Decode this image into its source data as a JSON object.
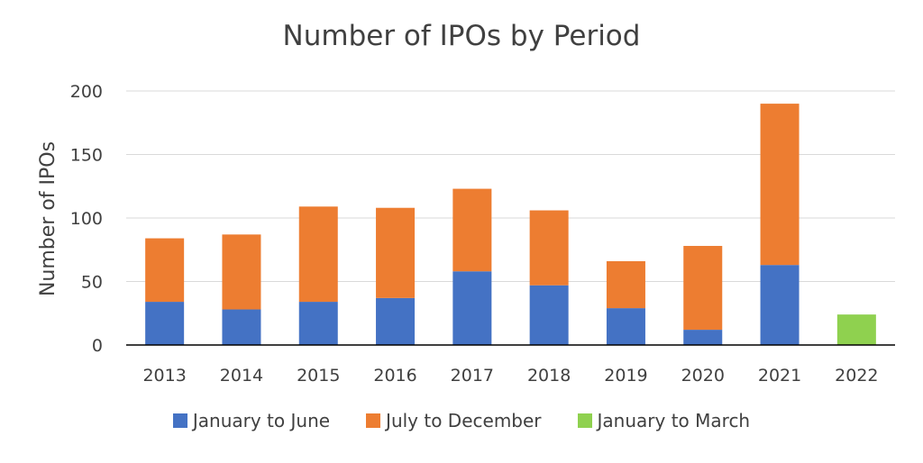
{
  "chart_data": {
    "type": "bar",
    "stacked": true,
    "title": "Number of IPOs by Period",
    "xlabel": "",
    "ylabel": "Number of IPOs",
    "ylim": [
      0,
      200
    ],
    "yticks": [
      0,
      50,
      100,
      150,
      200
    ],
    "grid": true,
    "legend_position": "bottom",
    "categories": [
      "2013",
      "2014",
      "2015",
      "2016",
      "2017",
      "2018",
      "2019",
      "2020",
      "2021",
      "2022"
    ],
    "series": [
      {
        "name": "January to June",
        "color": "#4472C4",
        "values": [
          34,
          28,
          34,
          37,
          58,
          47,
          29,
          12,
          63,
          null
        ]
      },
      {
        "name": "July to December",
        "color": "#ED7D31",
        "values": [
          50,
          59,
          75,
          71,
          65,
          59,
          37,
          66,
          127,
          null
        ]
      },
      {
        "name": "January to March",
        "color": "#8FD14F",
        "values": [
          null,
          null,
          null,
          null,
          null,
          null,
          null,
          null,
          null,
          24
        ]
      }
    ]
  }
}
